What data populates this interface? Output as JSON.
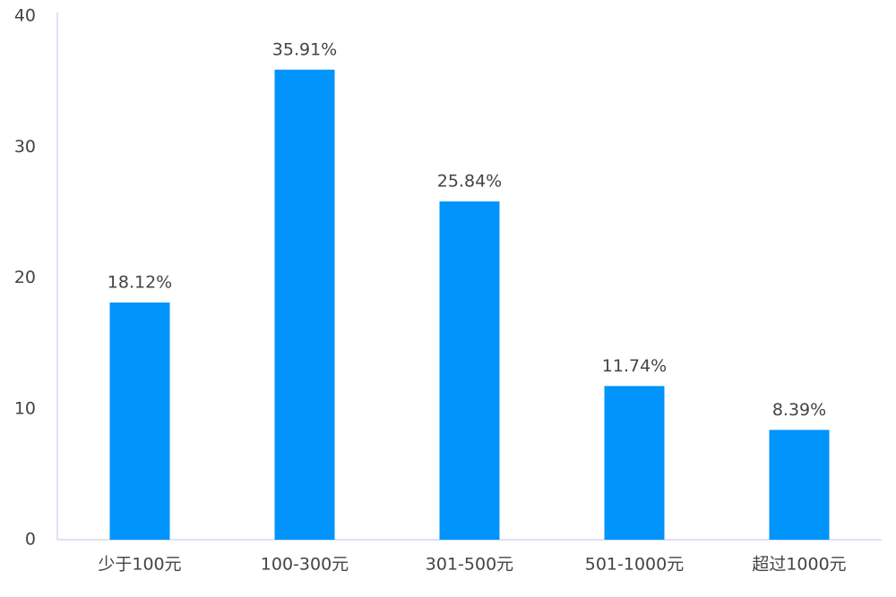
{
  "chart_data": {
    "type": "bar",
    "categories": [
      "少于100元",
      "100-300元",
      "301-500元",
      "501-1000元",
      "超过1000元"
    ],
    "values": [
      18.12,
      35.91,
      25.84,
      11.74,
      8.39
    ],
    "value_labels": [
      "18.12%",
      "35.91%",
      "25.84%",
      "11.74%",
      "8.39%"
    ],
    "color": "#0094fc",
    "ylim": [
      0,
      40
    ],
    "yticks": [
      0,
      10,
      20,
      30,
      40
    ],
    "grid": false
  }
}
